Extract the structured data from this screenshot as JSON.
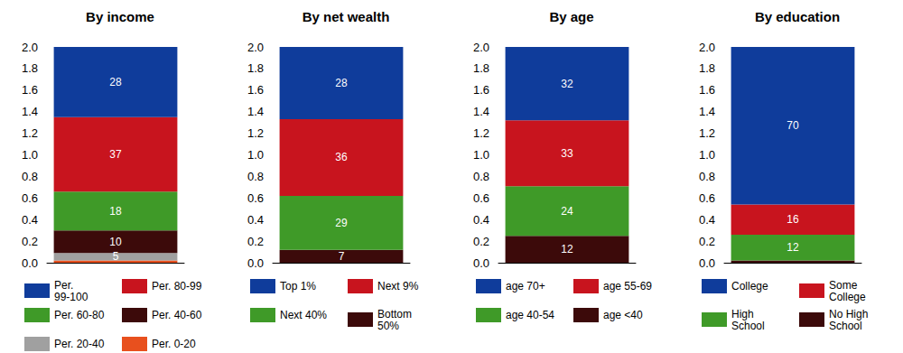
{
  "chart_data": [
    {
      "type": "bar",
      "title": "By income",
      "stacked": true,
      "grid": false,
      "tick_labels": "y",
      "categories": [
        null
      ],
      "ylim": [
        0,
        2.0
      ],
      "yticks": [
        {
          "value": 0,
          "label": "0.0"
        },
        0.2,
        0.4,
        0.6,
        0.8,
        {
          "value": 1.0,
          "label": "1.0"
        },
        1.2,
        1.4,
        1.6,
        1.8,
        {
          "value": 2.0,
          "label": "2.0"
        }
      ],
      "series": [
        {
          "name": "Per. 0-20",
          "color": "#e8501e",
          "values": [
            0.02
          ],
          "shares": [
            null
          ]
        },
        {
          "name": "Per. 20-40",
          "color": "#a0a0a0",
          "values": [
            0.07
          ],
          "shares": [
            5
          ]
        },
        {
          "name": "Per. 40-60",
          "color": "#3c0a0a",
          "values": [
            0.21
          ],
          "shares": [
            10
          ]
        },
        {
          "name": "Per. 60-80",
          "color": "#3f9a28",
          "values": [
            0.36
          ],
          "shares": [
            18
          ]
        },
        {
          "name": "Per. 80-99",
          "color": "#c8141e",
          "values": [
            0.69
          ],
          "shares": [
            37
          ]
        },
        {
          "name": "Per. 99-100",
          "color": "#0f3c9b",
          "values": [
            0.65
          ],
          "shares": [
            28
          ]
        }
      ]
    },
    {
      "type": "bar",
      "title": "By net wealth",
      "stacked": true,
      "grid": false,
      "tick_labels": "y",
      "categories": [
        null
      ],
      "ylim": [
        0,
        2.0
      ],
      "yticks": [
        {
          "value": 0,
          "label": "0.0"
        },
        0.2,
        0.4,
        0.6,
        0.8,
        {
          "value": 1.0,
          "label": "1.0"
        },
        1.2,
        1.4,
        1.6,
        1.8,
        {
          "value": 2.0,
          "label": "2.0"
        }
      ],
      "series": [
        {
          "name": "Bottom 50%",
          "color": "#3c0a0a",
          "values": [
            0.12
          ],
          "shares": [
            7
          ]
        },
        {
          "name": "Next 40%",
          "color": "#3f9a28",
          "values": [
            0.5
          ],
          "shares": [
            29
          ]
        },
        {
          "name": "Next 9%",
          "color": "#c8141e",
          "values": [
            0.71
          ],
          "shares": [
            36
          ]
        },
        {
          "name": "Top 1%",
          "color": "#0f3c9b",
          "values": [
            0.67
          ],
          "shares": [
            28
          ]
        }
      ]
    },
    {
      "type": "bar",
      "title": "By age",
      "stacked": true,
      "grid": false,
      "tick_labels": "y",
      "categories": [
        null
      ],
      "ylim": [
        0,
        2.0
      ],
      "yticks": [
        {
          "value": 0,
          "label": "0.0"
        },
        0.2,
        0.4,
        0.6,
        0.8,
        {
          "value": 1.0,
          "label": "1.0"
        },
        1.2,
        1.4,
        1.6,
        1.8,
        {
          "value": 2.0,
          "label": "2.0"
        }
      ],
      "series": [
        {
          "name": "age <40",
          "color": "#3c0a0a",
          "values": [
            0.25
          ],
          "shares": [
            12
          ]
        },
        {
          "name": "age 40-54",
          "color": "#3f9a28",
          "values": [
            0.46
          ],
          "shares": [
            24
          ]
        },
        {
          "name": "age 55-69",
          "color": "#c8141e",
          "values": [
            0.61
          ],
          "shares": [
            33
          ]
        },
        {
          "name": "age 70+",
          "color": "#0f3c9b",
          "values": [
            0.68
          ],
          "shares": [
            32
          ]
        }
      ]
    },
    {
      "type": "bar",
      "title": "By education",
      "stacked": true,
      "grid": false,
      "tick_labels": "y",
      "categories": [
        null
      ],
      "ylim": [
        0,
        2.0
      ],
      "yticks": [
        {
          "value": 0,
          "label": "0.0"
        },
        0.2,
        0.4,
        0.6,
        0.8,
        {
          "value": 1.0,
          "label": "1.0"
        },
        1.2,
        1.4,
        1.6,
        1.8,
        {
          "value": 2.0,
          "label": "2.0"
        }
      ],
      "series": [
        {
          "name": "No High School",
          "color": "#3c0a0a",
          "values": [
            0.02
          ],
          "shares": [
            null
          ]
        },
        {
          "name": "High School",
          "color": "#3f9a28",
          "values": [
            0.24
          ],
          "shares": [
            12
          ]
        },
        {
          "name": "Some College",
          "color": "#c8141e",
          "values": [
            0.28
          ],
          "shares": [
            16
          ]
        },
        {
          "name": "College",
          "color": "#0f3c9b",
          "values": [
            1.46
          ],
          "shares": [
            70
          ]
        }
      ]
    }
  ]
}
